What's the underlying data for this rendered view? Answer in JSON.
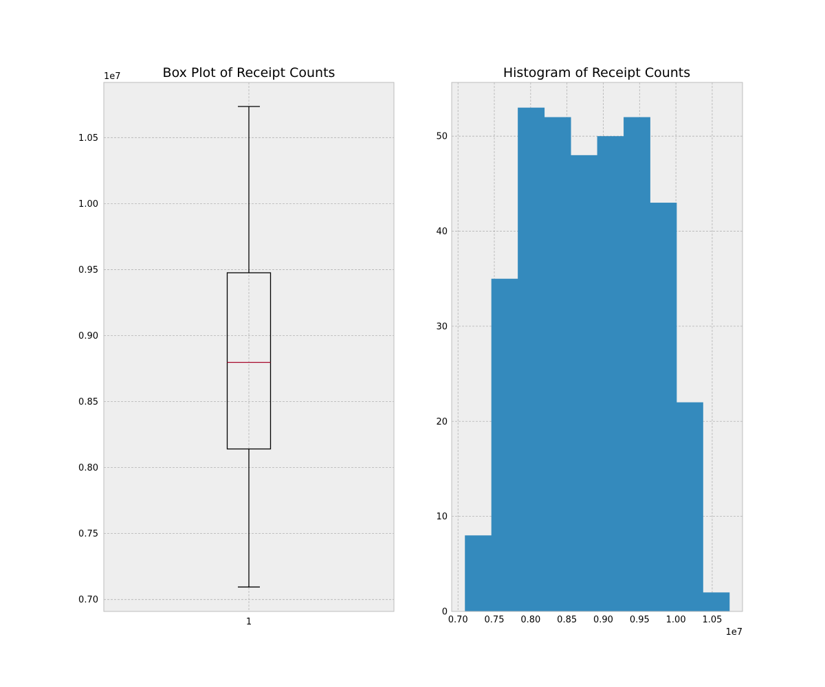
{
  "colors": {
    "axes_face": "#eeeeee",
    "axes_edge": "#bcbcbc",
    "grid": "#b2b2b2",
    "bar": "#348abd",
    "median": "#a60628",
    "box": "#000000"
  },
  "chart_data": [
    {
      "type": "box",
      "title": "Box Plot of Receipt Counts",
      "xlabel": "",
      "ylabel": "",
      "offset_label": "1e7",
      "categories": [
        "1"
      ],
      "ylim": [
        0.691,
        1.0918
      ],
      "yticks": [
        0.7,
        0.75,
        0.8,
        0.85,
        0.9,
        0.95,
        1.0,
        1.05
      ],
      "ytick_labels": [
        "0.70",
        "0.75",
        "0.80",
        "0.85",
        "0.90",
        "0.95",
        "1.00",
        "1.05"
      ],
      "grid": true,
      "box": {
        "whisker_low": 0.7095,
        "q1": 0.8141,
        "median": 0.8797,
        "q3": 0.9476,
        "whisker_high": 1.0736
      }
    },
    {
      "type": "histogram",
      "title": "Histogram of Receipt Counts",
      "xlabel": "",
      "ylabel": "",
      "offset_label": "1e7",
      "xlim": [
        0.6913,
        1.0917
      ],
      "ylim": [
        0,
        55.65
      ],
      "xticks": [
        0.7,
        0.75,
        0.8,
        0.85,
        0.9,
        0.95,
        1.0,
        1.05
      ],
      "xtick_labels": [
        "0.70",
        "0.75",
        "0.80",
        "0.85",
        "0.90",
        "0.95",
        "1.00",
        "1.05"
      ],
      "yticks": [
        0,
        10,
        20,
        30,
        40,
        50
      ],
      "ytick_labels": [
        "0",
        "10",
        "20",
        "30",
        "40",
        "50"
      ],
      "grid": true,
      "bin_edges": [
        0.7095,
        0.7459,
        0.7823,
        0.8188,
        0.8552,
        0.8916,
        0.928,
        0.9644,
        1.0008,
        1.0372,
        1.0736
      ],
      "counts": [
        8,
        35,
        53,
        52,
        48,
        50,
        52,
        43,
        22,
        2
      ]
    }
  ]
}
